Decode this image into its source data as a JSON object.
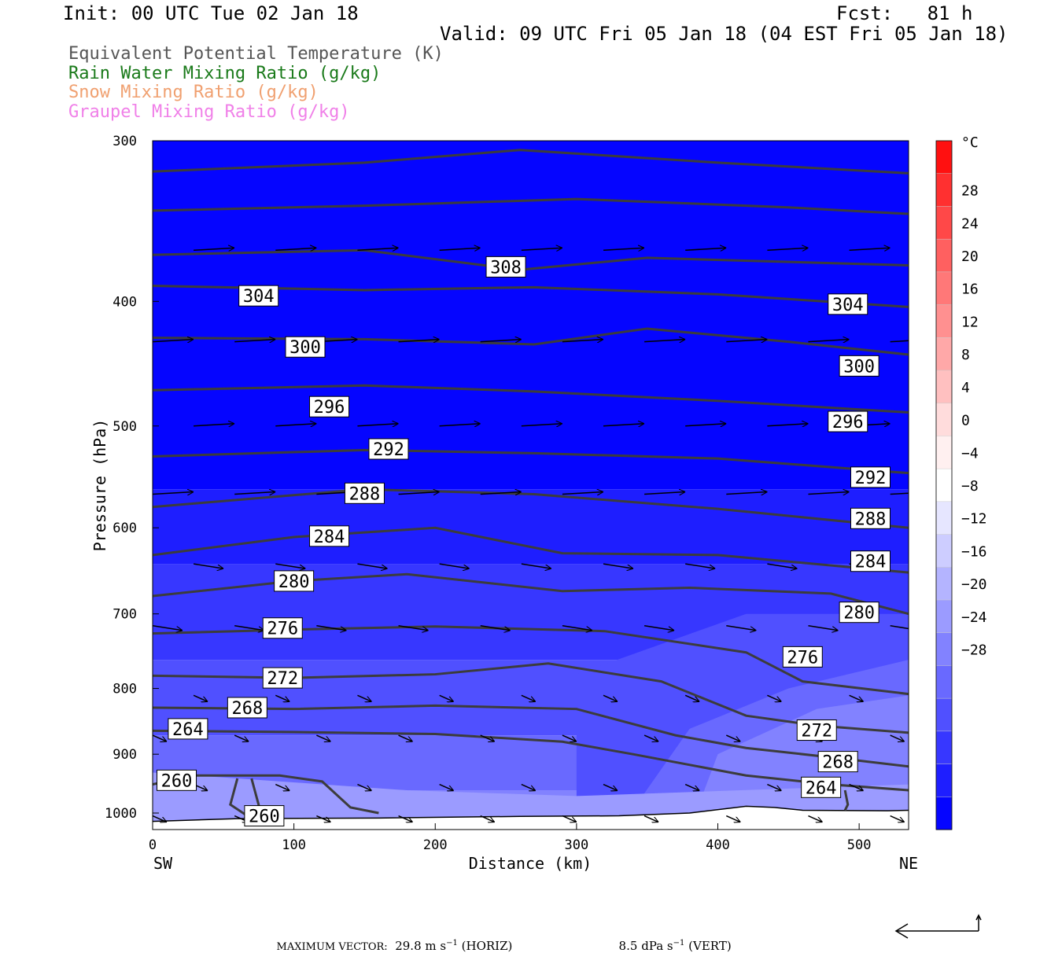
{
  "header": {
    "init": "Init: 00 UTC Tue 02 Jan 18",
    "fcst": "Fcst:   81 h",
    "valid": "Valid: 09 UTC Fri 05 Jan 18 (04 EST Fri 05 Jan 18)"
  },
  "legend": [
    {
      "label": "Equivalent Potential Temperature (K)",
      "color": "#555555"
    },
    {
      "label": "Rain Water Mixing Ratio (g/kg)",
      "color": "#1a7a1a"
    },
    {
      "label": "Snow Mixing Ratio (g/kg)",
      "color": "#f0a070"
    },
    {
      "label": "Graupel Mixing Ratio (g/kg)",
      "color": "#f080e8"
    }
  ],
  "chart_data": {
    "type": "cross-section",
    "xlabel": "Distance (km)",
    "ylabel": "Pressure (hPa)",
    "xlim": [
      0,
      535
    ],
    "ylim": [
      1030,
      300
    ],
    "y_scale": "log",
    "x_ticks": [
      0,
      100,
      200,
      300,
      400,
      500
    ],
    "y_ticks": [
      300,
      400,
      500,
      600,
      700,
      800,
      900,
      1000
    ],
    "left_end": "SW",
    "right_end": "NE",
    "fill_field": "temperature",
    "colorbar": {
      "unit": "°C",
      "labels": [
        "28",
        "24",
        "20",
        "16",
        "12",
        "8",
        "4",
        "0",
        "−4",
        "−8",
        "−12",
        "−16",
        "−20",
        "−24",
        "−28"
      ],
      "level_values": [
        32,
        28,
        24,
        20,
        16,
        12,
        8,
        4,
        0,
        -4,
        -8,
        -12,
        -16,
        -20,
        -24,
        -28,
        -32
      ],
      "colors": [
        "#ff1010",
        "#ff3030",
        "#ff4848",
        "#ff6060",
        "#ff7878",
        "#ff9090",
        "#ffa8a8",
        "#ffc0c0",
        "#ffdcdc",
        "#fff0f0",
        "#ffffff",
        "#e6e6ff",
        "#cdcdff",
        "#b4b4ff",
        "#9b9bff",
        "#8282ff",
        "#6969ff",
        "#5050ff",
        "#3737ff",
        "#1e1eff",
        "#0505ff"
      ]
    },
    "theta_e_contours": [
      {
        "value": 260,
        "label": "260",
        "labels_at": [
          [
            17,
            943
          ],
          [
            79,
            1005
          ]
        ]
      },
      {
        "value": 264,
        "label": "264",
        "labels_at": [
          [
            25,
            860
          ],
          [
            473,
            955
          ]
        ]
      },
      {
        "value": 268,
        "label": "268",
        "labels_at": [
          [
            67,
            828
          ],
          [
            485,
            912
          ]
        ]
      },
      {
        "value": 272,
        "label": "272",
        "labels_at": [
          [
            92,
            785
          ],
          [
            470,
            862
          ]
        ]
      },
      {
        "value": 276,
        "label": "276",
        "labels_at": [
          [
            92,
            718
          ],
          [
            460,
            756
          ]
        ]
      },
      {
        "value": 280,
        "label": "280",
        "labels_at": [
          [
            100,
            660
          ],
          [
            500,
            698
          ]
        ]
      },
      {
        "value": 284,
        "label": "284",
        "labels_at": [
          [
            125,
            609
          ],
          [
            508,
            637
          ]
        ]
      },
      {
        "value": 288,
        "label": "288",
        "labels_at": [
          [
            150,
            564
          ],
          [
            508,
            590
          ]
        ]
      },
      {
        "value": 292,
        "label": "292",
        "labels_at": [
          [
            167,
            521
          ],
          [
            508,
            548
          ]
        ]
      },
      {
        "value": 296,
        "label": "296",
        "labels_at": [
          [
            125,
            483
          ],
          [
            492,
            496
          ]
        ]
      },
      {
        "value": 300,
        "label": "300",
        "labels_at": [
          [
            108,
            434
          ],
          [
            500,
            449
          ]
        ]
      },
      {
        "value": 304,
        "label": "304",
        "labels_at": [
          [
            75,
            396
          ],
          [
            492,
            402
          ]
        ]
      },
      {
        "value": 308,
        "label": "308",
        "labels_at": [
          [
            250,
            376
          ]
        ]
      }
    ],
    "max_vector": {
      "label": "MAXIMUM VECTOR:",
      "horiz_value": "29.8",
      "horiz_units": "m s",
      "horiz_note": "(HORIZ)",
      "vert_value": "8.5",
      "vert_units": "dPa s",
      "vert_note": "(VERT)",
      "exponent": "−1"
    }
  }
}
